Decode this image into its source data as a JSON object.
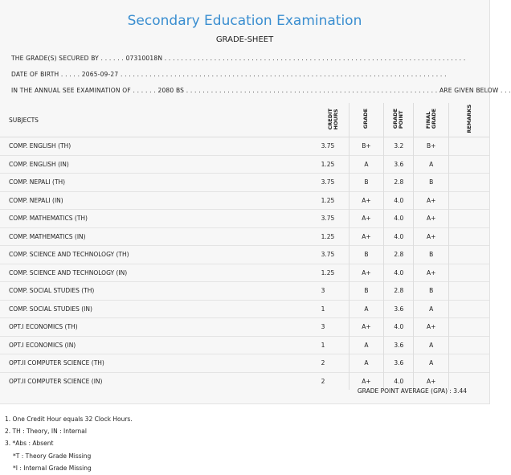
{
  "header": {
    "title": "Secondary Education Examination",
    "subtitle": "GRADE-SHEET"
  },
  "info": {
    "grade_label": "THE GRADE(S) SECURED BY",
    "grade_value": "07310018N",
    "dob_label": "DATE OF BIRTH",
    "dob_value": "2065-09-27",
    "exam_label": "IN THE ANNUAL SEE EXAMINATION OF",
    "exam_value": "2080 BS",
    "exam_tail": "ARE GIVEN BELOW"
  },
  "table": {
    "headers": {
      "subjects": "SUBJECTS",
      "credit_hours": "CREDIT\nHOURS",
      "grade": "GRADE",
      "grade_point": "GRADE\nPOINT",
      "final_grade": "FINAL\nGRADE",
      "remarks": "REMARKS"
    },
    "rows": [
      {
        "subject": "COMP. ENGLISH (TH)",
        "credit": "3.75",
        "grade": "B+",
        "point": "3.2",
        "final": "B+",
        "remarks": ""
      },
      {
        "subject": "COMP. ENGLISH (IN)",
        "credit": "1.25",
        "grade": "A",
        "point": "3.6",
        "final": "A",
        "remarks": ""
      },
      {
        "subject": "COMP. NEPALI (TH)",
        "credit": "3.75",
        "grade": "B",
        "point": "2.8",
        "final": "B",
        "remarks": ""
      },
      {
        "subject": "COMP. NEPALI (IN)",
        "credit": "1.25",
        "grade": "A+",
        "point": "4.0",
        "final": "A+",
        "remarks": ""
      },
      {
        "subject": "COMP. MATHEMATICS (TH)",
        "credit": "3.75",
        "grade": "A+",
        "point": "4.0",
        "final": "A+",
        "remarks": ""
      },
      {
        "subject": "COMP. MATHEMATICS (IN)",
        "credit": "1.25",
        "grade": "A+",
        "point": "4.0",
        "final": "A+",
        "remarks": ""
      },
      {
        "subject": "COMP. SCIENCE AND TECHNOLOGY (TH)",
        "credit": "3.75",
        "grade": "B",
        "point": "2.8",
        "final": "B",
        "remarks": ""
      },
      {
        "subject": "COMP. SCIENCE AND TECHNOLOGY (IN)",
        "credit": "1.25",
        "grade": "A+",
        "point": "4.0",
        "final": "A+",
        "remarks": ""
      },
      {
        "subject": "COMP. SOCIAL STUDIES (TH)",
        "credit": "3",
        "grade": "B",
        "point": "2.8",
        "final": "B",
        "remarks": ""
      },
      {
        "subject": "COMP. SOCIAL STUDIES (IN)",
        "credit": "1",
        "grade": "A",
        "point": "3.6",
        "final": "A",
        "remarks": ""
      },
      {
        "subject": "OPT.I ECONOMICS (TH)",
        "credit": "3",
        "grade": "A+",
        "point": "4.0",
        "final": "A+",
        "remarks": ""
      },
      {
        "subject": "OPT.I ECONOMICS (IN)",
        "credit": "1",
        "grade": "A",
        "point": "3.6",
        "final": "A",
        "remarks": ""
      },
      {
        "subject": "OPT.II COMPUTER SCIENCE (TH)",
        "credit": "2",
        "grade": "A",
        "point": "3.6",
        "final": "A",
        "remarks": ""
      },
      {
        "subject": "OPT.II COMPUTER SCIENCE (IN)",
        "credit": "2",
        "grade": "A+",
        "point": "4.0",
        "final": "A+",
        "remarks": ""
      }
    ]
  },
  "gpa": "GRADE POINT AVERAGE (GPA) : 3.44",
  "notes": [
    "1. One Credit Hour equals 32 Clock Hours.",
    "2. TH : Theory, IN : Internal",
    "3. *Abs : Absent",
    "*T : Theory Grade Missing",
    "*I : Internal Grade Missing"
  ]
}
